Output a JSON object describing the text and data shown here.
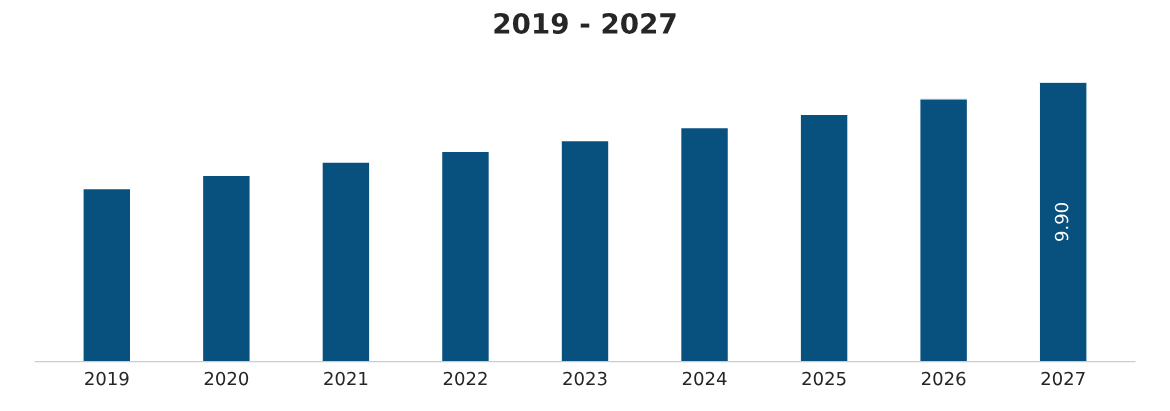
{
  "chart_data": {
    "type": "bar",
    "title": "2019 - 2027",
    "categories": [
      "2019",
      "2020",
      "2021",
      "2022",
      "2023",
      "2024",
      "2025",
      "2026",
      "2027"
    ],
    "values": [
      6.13,
      6.6,
      7.07,
      7.45,
      7.83,
      8.29,
      8.76,
      9.31,
      9.9
    ],
    "value_labels": [
      null,
      null,
      null,
      null,
      null,
      null,
      null,
      null,
      "9.90"
    ],
    "color": "#08517f",
    "grid": false,
    "legend": false,
    "tick_labels": "x"
  }
}
